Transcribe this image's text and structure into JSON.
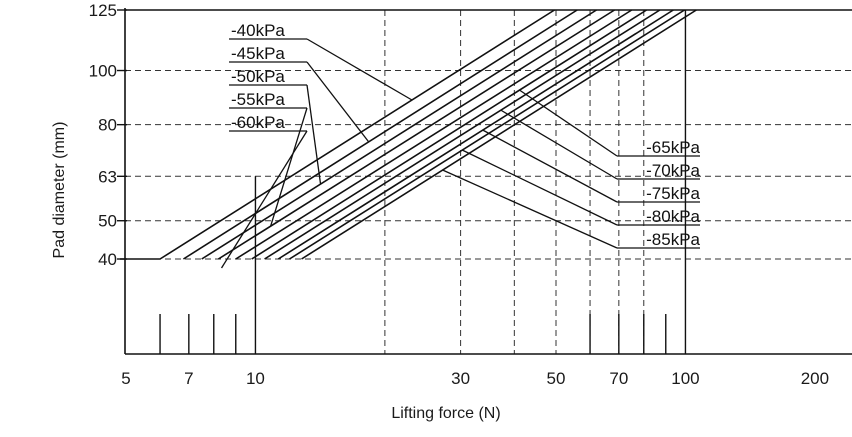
{
  "chart_data": {
    "type": "line",
    "title": "",
    "xlabel": "Lifting force (N)",
    "ylabel": "Pad diameter (mm)",
    "x_scale": "log",
    "y_scale": "sqrt",
    "xlim": [
      5,
      200
    ],
    "ylim": [
      20,
      125
    ],
    "x_ticks": [
      5,
      7,
      10,
      30,
      50,
      70,
      100,
      200
    ],
    "y_ticks": [
      40,
      50,
      63,
      80,
      100,
      125
    ],
    "x_gridlines": [
      20,
      30,
      40,
      50,
      60,
      70,
      80
    ],
    "y_gridlines": [
      40,
      50,
      63,
      80,
      100
    ],
    "minor_x_ticks": [
      6,
      7,
      8,
      9,
      60,
      70,
      80,
      90
    ],
    "series": [
      {
        "name": "-40kPa",
        "x": [
          6.0,
          49.6
        ],
        "y": [
          40,
          125
        ]
      },
      {
        "name": "-45kPa",
        "x": [
          6.8,
          56.0
        ],
        "y": [
          40,
          125
        ]
      },
      {
        "name": "-50kPa",
        "x": [
          7.5,
          62.1
        ],
        "y": [
          40,
          125
        ]
      },
      {
        "name": "-55kPa",
        "x": [
          8.2,
          68.4
        ],
        "y": [
          40,
          125
        ]
      },
      {
        "name": "-60kPa",
        "x": [
          9.0,
          75.0
        ],
        "y": [
          40,
          125
        ]
      },
      {
        "name": "-65kPa",
        "x": [
          9.8,
          81.2
        ],
        "y": [
          40,
          125
        ]
      },
      {
        "name": "-70kPa",
        "x": [
          10.5,
          87.2
        ],
        "y": [
          40,
          125
        ]
      },
      {
        "name": "-75kPa",
        "x": [
          11.3,
          93.7
        ],
        "y": [
          40,
          125
        ]
      },
      {
        "name": "-80kPa",
        "x": [
          12.0,
          99.5
        ],
        "y": [
          40,
          125
        ]
      },
      {
        "name": "-85kPa",
        "x": [
          12.8,
          106.0
        ],
        "y": [
          40,
          125
        ]
      }
    ]
  }
}
